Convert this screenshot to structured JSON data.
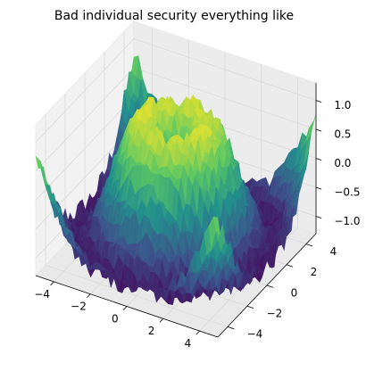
{
  "chart_data": {
    "type": "surface3d",
    "title": "Bad individual security everything like",
    "function_description": "z ≈ sin(sqrt(x^2 + y^2)) + small noise",
    "xlabel": "",
    "ylabel": "",
    "zlabel": "",
    "xlim": [
      -5,
      5
    ],
    "ylim": [
      -5,
      5
    ],
    "zlim": [
      -1.3,
      1.3
    ],
    "x_ticks": [
      -4,
      -2,
      0,
      2,
      4
    ],
    "y_ticks": [
      -4,
      -2,
      0,
      2,
      4
    ],
    "z_ticks": [
      -1.0,
      -0.5,
      0.0,
      0.5,
      1.0
    ],
    "x_tick_labels": [
      "−4",
      "−2",
      "0",
      "2",
      "4"
    ],
    "y_tick_labels": [
      "−4",
      "−2",
      "0",
      "2",
      "4"
    ],
    "z_tick_labels": [
      "−1.0",
      "−0.5",
      "0.0",
      "0.5",
      "1.0"
    ],
    "grid": true,
    "legend": false,
    "colormap": "viridis",
    "colormap_stops": [
      "#440154",
      "#3b528b",
      "#21918c",
      "#5ec962",
      "#fde725"
    ],
    "pane_color": "#f2f2f2",
    "grid_color": "#d9d9d9",
    "axis_color": "#000000"
  }
}
